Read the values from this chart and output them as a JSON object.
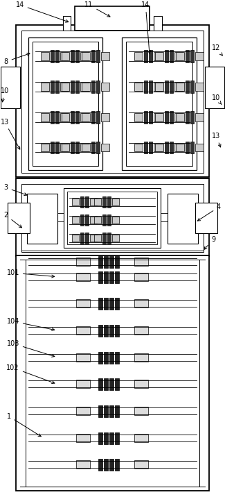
{
  "bg_color": "#ffffff",
  "line_color": "#000000",
  "fig_width": 3.25,
  "fig_height": 7.16,
  "dpi": 100
}
